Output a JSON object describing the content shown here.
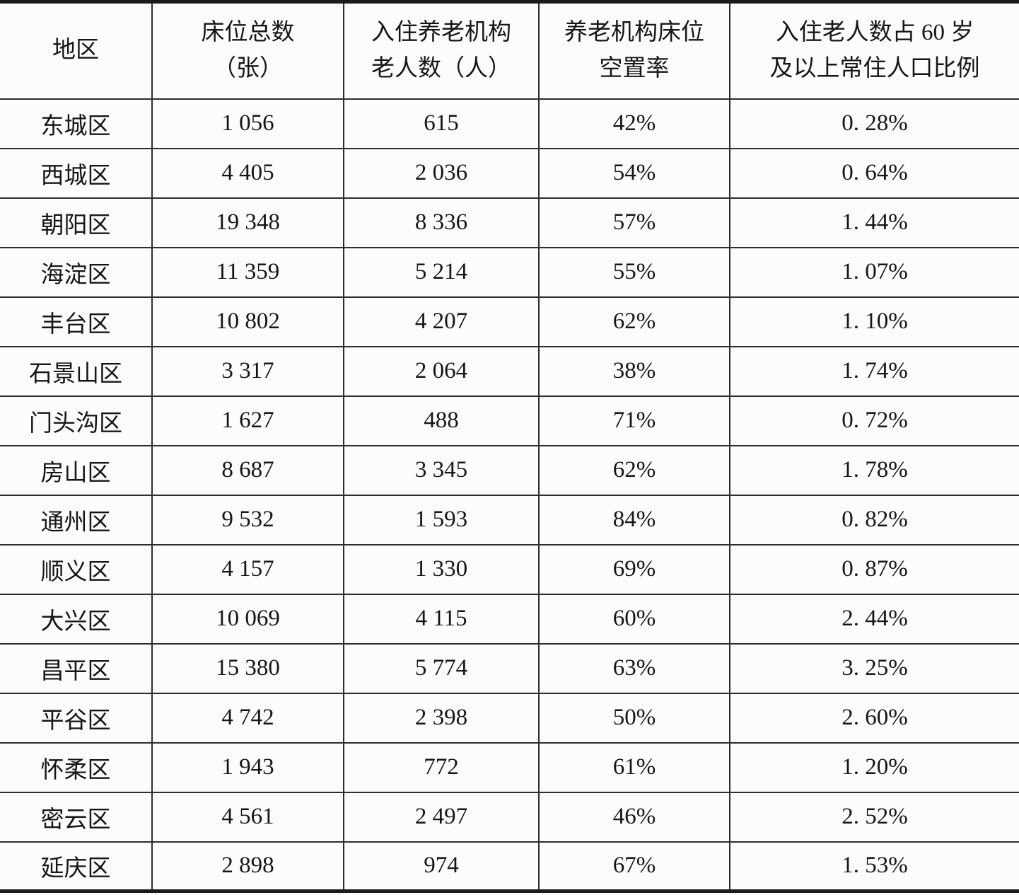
{
  "colors": {
    "background": "#fcfcfc",
    "text": "#161616",
    "border_thick": "#1b1b1b",
    "border_thin": "#2e2e2e"
  },
  "table": {
    "headers": [
      {
        "line1": "地区",
        "line2": ""
      },
      {
        "line1": "床位总数",
        "line2": "（张）"
      },
      {
        "line1": "入住养老机构",
        "line2": "老人数（人）"
      },
      {
        "line1": "养老机构床位",
        "line2": "空置率"
      },
      {
        "line1": "入住老人数占 60 岁",
        "line2": "及以上常住人口比例"
      }
    ],
    "rows": [
      {
        "district": "东城区",
        "total_beds": "1 056",
        "residents": "615",
        "vacancy_rate": "42%",
        "population_ratio": "0. 28%"
      },
      {
        "district": "西城区",
        "total_beds": "4 405",
        "residents": "2 036",
        "vacancy_rate": "54%",
        "population_ratio": "0. 64%"
      },
      {
        "district": "朝阳区",
        "total_beds": "19 348",
        "residents": "8 336",
        "vacancy_rate": "57%",
        "population_ratio": "1. 44%"
      },
      {
        "district": "海淀区",
        "total_beds": "11 359",
        "residents": "5 214",
        "vacancy_rate": "55%",
        "population_ratio": "1. 07%"
      },
      {
        "district": "丰台区",
        "total_beds": "10 802",
        "residents": "4 207",
        "vacancy_rate": "62%",
        "population_ratio": "1. 10%"
      },
      {
        "district": "石景山区",
        "total_beds": "3 317",
        "residents": "2 064",
        "vacancy_rate": "38%",
        "population_ratio": "1. 74%"
      },
      {
        "district": "门头沟区",
        "total_beds": "1 627",
        "residents": "488",
        "vacancy_rate": "71%",
        "population_ratio": "0. 72%"
      },
      {
        "district": "房山区",
        "total_beds": "8 687",
        "residents": "3 345",
        "vacancy_rate": "62%",
        "population_ratio": "1. 78%"
      },
      {
        "district": "通州区",
        "total_beds": "9 532",
        "residents": "1 593",
        "vacancy_rate": "84%",
        "population_ratio": "0. 82%"
      },
      {
        "district": "顺义区",
        "total_beds": "4 157",
        "residents": "1 330",
        "vacancy_rate": "69%",
        "population_ratio": "0. 87%"
      },
      {
        "district": "大兴区",
        "total_beds": "10 069",
        "residents": "4 115",
        "vacancy_rate": "60%",
        "population_ratio": "2. 44%"
      },
      {
        "district": "昌平区",
        "total_beds": "15 380",
        "residents": "5 774",
        "vacancy_rate": "63%",
        "population_ratio": "3. 25%"
      },
      {
        "district": "平谷区",
        "total_beds": "4 742",
        "residents": "2 398",
        "vacancy_rate": "50%",
        "population_ratio": "2. 60%"
      },
      {
        "district": "怀柔区",
        "total_beds": "1 943",
        "residents": "772",
        "vacancy_rate": "61%",
        "population_ratio": "1. 20%"
      },
      {
        "district": "密云区",
        "total_beds": "4 561",
        "residents": "2 497",
        "vacancy_rate": "46%",
        "population_ratio": "2. 52%"
      },
      {
        "district": "延庆区",
        "total_beds": "2 898",
        "residents": "974",
        "vacancy_rate": "67%",
        "population_ratio": "1. 53%"
      }
    ]
  }
}
